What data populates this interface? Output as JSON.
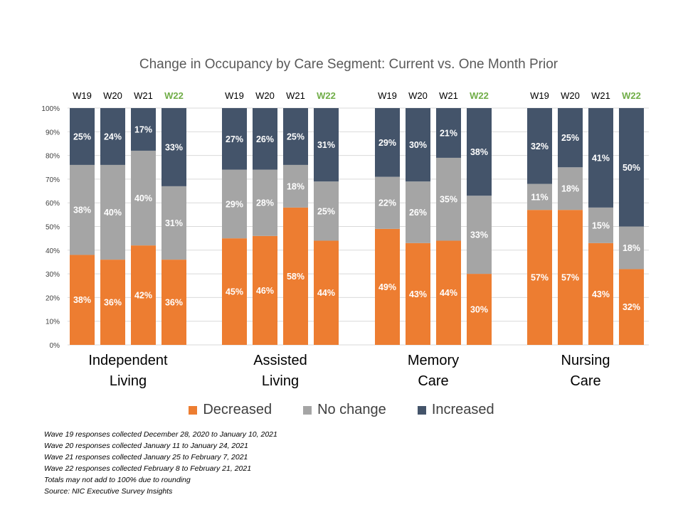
{
  "chart_data": {
    "type": "bar",
    "stacked": true,
    "title": "Change in Occupancy by Care Segment: Current vs. One Month Prior",
    "ylim": [
      0,
      100
    ],
    "y_ticks": [
      "0%",
      "10%",
      "20%",
      "30%",
      "40%",
      "50%",
      "60%",
      "70%",
      "80%",
      "90%",
      "100%"
    ],
    "grid": true,
    "legend_position": "bottom",
    "colors": {
      "Decreased": "#ED7D31",
      "No change": "#A5A5A5",
      "Increased": "#44546A",
      "w22_label": "#70AD47"
    },
    "groups": [
      {
        "name_lines": [
          "Independent",
          "Living"
        ],
        "waves": [
          "W19",
          "W20",
          "W21",
          "W22"
        ],
        "decreased": [
          38,
          36,
          42,
          36
        ],
        "no_change": [
          38,
          40,
          40,
          31
        ],
        "increased": [
          25,
          24,
          17,
          33
        ],
        "labels": {
          "decreased": [
            "38%",
            "36%",
            "42%",
            "36%"
          ],
          "no_change": [
            "38%",
            "40%",
            "40%",
            "31%"
          ],
          "increased": [
            "25%",
            "24%",
            "17%",
            "33%"
          ]
        }
      },
      {
        "name_lines": [
          "Assisted",
          "Living"
        ],
        "waves": [
          "W19",
          "W20",
          "W21",
          "W22"
        ],
        "decreased": [
          45,
          46,
          58,
          44
        ],
        "no_change": [
          29,
          28,
          18,
          25
        ],
        "increased": [
          27,
          26,
          25,
          31
        ],
        "labels": {
          "decreased": [
            "45%",
            "46%",
            "58%",
            "44%"
          ],
          "no_change": [
            "29%",
            "28%",
            "18%",
            "25%"
          ],
          "increased": [
            "27%",
            "26%",
            "25%",
            "31%"
          ]
        }
      },
      {
        "name_lines": [
          "Memory",
          "Care"
        ],
        "waves": [
          "W19",
          "W20",
          "W21",
          "W22"
        ],
        "decreased": [
          49,
          43,
          44,
          30
        ],
        "no_change": [
          22,
          26,
          35,
          33
        ],
        "increased": [
          29,
          30,
          21,
          38
        ],
        "labels": {
          "decreased": [
            "49%",
            "43%",
            "44%",
            "30%"
          ],
          "no_change": [
            "22%",
            "26%",
            "35%",
            "33%"
          ],
          "increased": [
            "29%",
            "30%",
            "21%",
            "38%"
          ]
        }
      },
      {
        "name_lines": [
          "Nursing",
          "Care"
        ],
        "waves": [
          "W19",
          "W20",
          "W21",
          "W22"
        ],
        "decreased": [
          57,
          57,
          43,
          32
        ],
        "no_change": [
          11,
          18,
          15,
          18
        ],
        "increased": [
          32,
          25,
          41,
          50
        ],
        "labels": {
          "decreased": [
            "57%",
            "57%",
            "43%",
            "32%"
          ],
          "no_change": [
            "11%",
            "18%",
            "15%",
            "18%"
          ],
          "increased": [
            "32%",
            "25%",
            "41%",
            "50%"
          ]
        }
      }
    ],
    "legend": [
      "Decreased",
      "No change",
      "Increased"
    ]
  },
  "footnotes": [
    "Wave 19 responses collected December 28, 2020 to January 10, 2021",
    "Wave 20 responses collected January 11 to January 24, 2021",
    "Wave 21 responses collected January 25 to February 7, 2021",
    "Wave 22 responses collected February 8 to February 21, 2021",
    "Totals may not add to 100% due to rounding",
    "Source: NIC Executive Survey Insights"
  ]
}
